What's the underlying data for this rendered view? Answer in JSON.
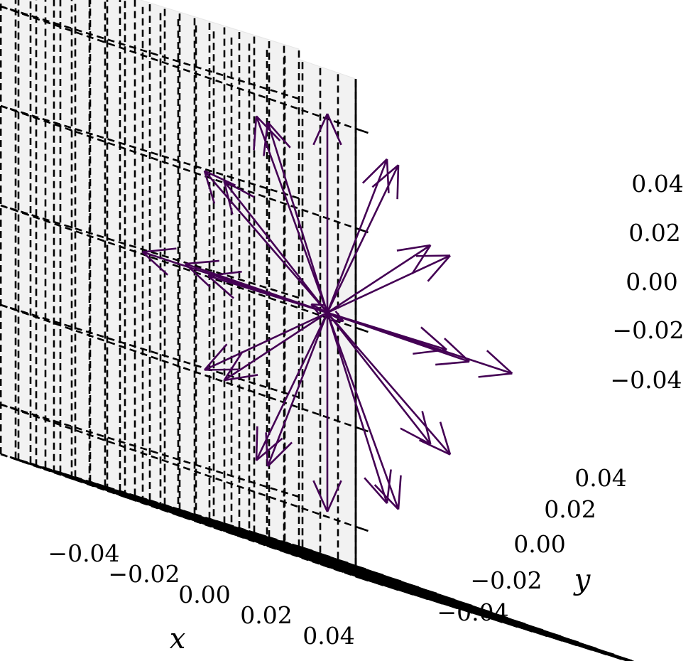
{
  "chart_data": {
    "type": "quiver3d",
    "title": "",
    "xlabel": "x",
    "ylabel": "y",
    "zlabel": "",
    "xlim": [
      -0.05,
      0.05
    ],
    "ylim": [
      -0.05,
      0.05
    ],
    "zlim": [
      -0.05,
      0.05
    ],
    "xticks": [
      -0.04,
      -0.02,
      0.0,
      0.02,
      0.04
    ],
    "yticks": [
      -0.04,
      -0.02,
      0.0,
      0.02,
      0.04
    ],
    "zticks": [
      -0.04,
      -0.02,
      0.0,
      0.02,
      0.04
    ],
    "xtick_labels": [
      "−0.04",
      "−0.02",
      "0.00",
      "0.02",
      "0.04"
    ],
    "ytick_labels": [
      "−0.04",
      "−0.02",
      "0.00",
      "0.02",
      "0.04"
    ],
    "ztick_labels": [
      "−0.04",
      "−0.02",
      "0.00",
      "0.02",
      "0.04"
    ],
    "grid": true,
    "grid_style": "dashed",
    "pane_color": "#f2f2f2",
    "arrow_color": "#440154",
    "origin": [
      0,
      0,
      0
    ],
    "vectors": [
      {
        "u": 0.0,
        "v": 0.0,
        "w": 0.04
      },
      {
        "u": 0.0,
        "v": 0.0,
        "w": -0.04
      },
      {
        "u": 0.02,
        "v": 0.0,
        "w": 0.0346
      },
      {
        "u": -0.02,
        "v": 0.0,
        "w": 0.0346
      },
      {
        "u": 0.0,
        "v": 0.02,
        "w": 0.0346
      },
      {
        "u": 0.0,
        "v": -0.02,
        "w": 0.0346
      },
      {
        "u": 0.0346,
        "v": 0.0,
        "w": 0.02
      },
      {
        "u": -0.0346,
        "v": 0.0,
        "w": 0.02
      },
      {
        "u": 0.0,
        "v": 0.0346,
        "w": 0.02
      },
      {
        "u": 0.0,
        "v": -0.0346,
        "w": 0.02
      },
      {
        "u": 0.04,
        "v": 0.0,
        "w": 0.0
      },
      {
        "u": -0.04,
        "v": 0.0,
        "w": 0.0
      },
      {
        "u": 0.0,
        "v": 0.04,
        "w": 0.0
      },
      {
        "u": 0.0,
        "v": -0.04,
        "w": 0.0
      },
      {
        "u": 0.0283,
        "v": 0.0283,
        "w": 0.0
      },
      {
        "u": -0.0283,
        "v": 0.0283,
        "w": 0.0
      },
      {
        "u": 0.0283,
        "v": -0.0283,
        "w": 0.0
      },
      {
        "u": -0.0283,
        "v": -0.0283,
        "w": 0.0
      },
      {
        "u": 0.0346,
        "v": 0.0,
        "w": -0.02
      },
      {
        "u": -0.0346,
        "v": 0.0,
        "w": -0.02
      },
      {
        "u": 0.0,
        "v": 0.0346,
        "w": -0.02
      },
      {
        "u": 0.0,
        "v": -0.0346,
        "w": -0.02
      },
      {
        "u": 0.02,
        "v": 0.0,
        "w": -0.0346
      },
      {
        "u": -0.02,
        "v": 0.0,
        "w": -0.0346
      },
      {
        "u": 0.0,
        "v": 0.02,
        "w": -0.0346
      },
      {
        "u": 0.0,
        "v": -0.02,
        "w": -0.0346
      }
    ]
  }
}
